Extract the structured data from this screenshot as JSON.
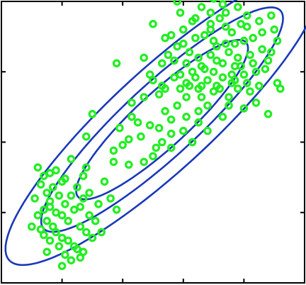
{
  "chart_data": {
    "type": "scatter",
    "title": "",
    "xlabel": "",
    "ylabel": "",
    "xlim": [
      0,
      10
    ],
    "ylim": [
      0,
      10
    ],
    "grid": false,
    "legend": "none",
    "xticks": [
      2,
      4,
      6,
      8
    ],
    "yticks": [
      2.5,
      5,
      7.5
    ],
    "series": [
      {
        "kind": "points",
        "marker": "circle-open",
        "color": "#22ee22",
        "points": [
          [
            1.2,
            4.1
          ],
          [
            1.4,
            3.8
          ],
          [
            1.6,
            3.9
          ],
          [
            1.8,
            4.0
          ],
          [
            2.1,
            3.7
          ],
          [
            1.5,
            3.2
          ],
          [
            1.3,
            3.5
          ],
          [
            2.0,
            3.6
          ],
          [
            1.6,
            2.9
          ],
          [
            1.4,
            2.6
          ],
          [
            1.8,
            2.5
          ],
          [
            2.1,
            2.8
          ],
          [
            1.9,
            3.1
          ],
          [
            1.2,
            2.4
          ],
          [
            1.5,
            2.2
          ],
          [
            1.7,
            2.0
          ],
          [
            1.8,
            1.8
          ],
          [
            2.0,
            1.6
          ],
          [
            1.6,
            1.5
          ],
          [
            1.4,
            1.7
          ],
          [
            1.9,
            1.3
          ],
          [
            2.2,
            1.5
          ],
          [
            2.4,
            1.3
          ],
          [
            2.5,
            1.2
          ],
          [
            2.0,
            0.6
          ],
          [
            2.3,
            0.8
          ],
          [
            2.6,
            0.9
          ],
          [
            1.5,
            1.1
          ],
          [
            1.3,
            1.9
          ],
          [
            1.1,
            3.0
          ],
          [
            2.2,
            2.2
          ],
          [
            2.4,
            2.6
          ],
          [
            2.6,
            2.0
          ],
          [
            2.8,
            1.8
          ],
          [
            3.0,
            1.6
          ],
          [
            2.9,
            2.4
          ],
          [
            2.7,
            3.0
          ],
          [
            2.5,
            3.4
          ],
          [
            2.9,
            3.2
          ],
          [
            3.2,
            2.8
          ],
          [
            2.8,
            4.1
          ],
          [
            2.3,
            4.4
          ],
          [
            2.7,
            3.8
          ],
          [
            3.1,
            2.2
          ],
          [
            3.4,
            3.6
          ],
          [
            3.6,
            3.0
          ],
          [
            3.8,
            2.6
          ],
          [
            3.3,
            1.8
          ],
          [
            2.7,
            1.1
          ],
          [
            2.1,
            1.0
          ],
          [
            1.0,
            2.0
          ],
          [
            1.7,
            3.4
          ],
          [
            2.3,
            3.1
          ],
          [
            2.6,
            2.7
          ],
          [
            2.0,
            2.4
          ],
          [
            1.6,
            2.7
          ],
          [
            2.8,
            5.2
          ],
          [
            3.7,
            4.3
          ],
          [
            3.7,
            4.7
          ],
          [
            4.2,
            4.2
          ],
          [
            4.3,
            5.9
          ],
          [
            4.6,
            5.2
          ],
          [
            4.9,
            5.6
          ],
          [
            5.0,
            4.5
          ],
          [
            5.1,
            4.8
          ],
          [
            4.7,
            4.3
          ],
          [
            5.2,
            5.5
          ],
          [
            5.3,
            5.0
          ],
          [
            5.6,
            5.8
          ],
          [
            5.8,
            6.3
          ],
          [
            5.6,
            4.8
          ],
          [
            5.4,
            6.1
          ],
          [
            6.1,
            5.9
          ],
          [
            6.5,
            6.1
          ],
          [
            6.0,
            5.4
          ],
          [
            6.3,
            5.0
          ],
          [
            6.8,
            6.3
          ],
          [
            7.0,
            6.8
          ],
          [
            5.2,
            6.7
          ],
          [
            4.9,
            7.4
          ],
          [
            5.0,
            7.2
          ],
          [
            5.4,
            6.9
          ],
          [
            5.9,
            7.4
          ],
          [
            5.7,
            7.9
          ],
          [
            6.1,
            7.1
          ],
          [
            5.5,
            8.1
          ],
          [
            5.8,
            8.4
          ],
          [
            6.4,
            8.7
          ],
          [
            6.2,
            8.2
          ],
          [
            6.6,
            7.7
          ],
          [
            6.8,
            7.2
          ],
          [
            7.0,
            7.5
          ],
          [
            7.1,
            7.9
          ],
          [
            6.9,
            8.1
          ],
          [
            6.7,
            8.8
          ],
          [
            6.3,
            9.3
          ],
          [
            6.0,
            9.0
          ],
          [
            6.9,
            9.6
          ],
          [
            7.2,
            9.4
          ],
          [
            7.4,
            9.1
          ],
          [
            7.7,
            8.5
          ],
          [
            7.5,
            8.2
          ],
          [
            7.8,
            8.0
          ],
          [
            7.9,
            7.7
          ],
          [
            7.6,
            7.4
          ],
          [
            7.3,
            7.3
          ],
          [
            8.0,
            8.6
          ],
          [
            8.2,
            8.1
          ],
          [
            8.4,
            7.5
          ],
          [
            8.1,
            7.1
          ],
          [
            7.8,
            6.9
          ],
          [
            8.4,
            6.4
          ],
          [
            8.0,
            6.2
          ],
          [
            7.5,
            6.6
          ],
          [
            7.2,
            6.9
          ],
          [
            6.6,
            7.0
          ],
          [
            6.4,
            7.3
          ],
          [
            7.3,
            7.8
          ],
          [
            8.1,
            9.1
          ],
          [
            8.3,
            8.7
          ],
          [
            8.6,
            8.3
          ],
          [
            8.7,
            7.6
          ],
          [
            8.5,
            7.0
          ],
          [
            8.2,
            6.8
          ],
          [
            7.6,
            7.1
          ],
          [
            7.1,
            7.0
          ],
          [
            6.1,
            7.8
          ],
          [
            6.3,
            7.5
          ],
          [
            5.7,
            7.3
          ],
          [
            5.3,
            7.0
          ],
          [
            7.4,
            9.6
          ],
          [
            7.0,
            10.1
          ],
          [
            7.2,
            10.3
          ],
          [
            7.8,
            9.8
          ],
          [
            8.5,
            9.3
          ],
          [
            8.1,
            9.5
          ],
          [
            8.9,
            8.2
          ],
          [
            9.1,
            8.6
          ],
          [
            8.8,
            7.9
          ],
          [
            9.1,
            7.1
          ],
          [
            9.2,
            6.9
          ],
          [
            8.8,
            6.0
          ],
          [
            7.5,
            6.3
          ],
          [
            7.3,
            5.9
          ],
          [
            6.8,
            5.4
          ],
          [
            6.5,
            5.7
          ],
          [
            6.1,
            6.6
          ],
          [
            5.9,
            6.9
          ],
          [
            4.7,
            6.6
          ],
          [
            4.3,
            6.4
          ],
          [
            3.8,
            7.8
          ],
          [
            3.0,
            6.0
          ],
          [
            4.2,
            5.1
          ],
          [
            4.0,
            4.9
          ],
          [
            3.9,
            5.5
          ],
          [
            4.5,
            5.7
          ],
          [
            5.6,
            5.3
          ],
          [
            6.6,
            6.6
          ],
          [
            7.7,
            7.7
          ],
          [
            8.3,
            7.8
          ],
          [
            8.6,
            8.9
          ],
          [
            7.9,
            9.2
          ],
          [
            6.9,
            9.0
          ],
          [
            5.6,
            8.8
          ],
          [
            5.9,
            9.6
          ],
          [
            6.6,
            9.8
          ],
          [
            6.8,
            10.4
          ],
          [
            7.5,
            10.6
          ],
          [
            8.2,
            10.4
          ],
          [
            8.9,
            10.8
          ],
          [
            8.0,
            10.2
          ],
          [
            5.8,
            10.0
          ],
          [
            5.0,
            9.2
          ],
          [
            4.7,
            8.0
          ],
          [
            5.3,
            7.8
          ],
          [
            6.0,
            8.5
          ],
          [
            7.4,
            8.5
          ],
          [
            6.5,
            8.0
          ],
          [
            7.0,
            8.6
          ],
          [
            7.6,
            8.9
          ],
          [
            8.0,
            7.4
          ],
          [
            7.7,
            7.2
          ],
          [
            6.7,
            7.6
          ],
          [
            6.2,
            7.0
          ],
          [
            5.4,
            8.7
          ],
          [
            8.9,
            9.5
          ],
          [
            9.0,
            9.0
          ],
          [
            6.9,
            9.2
          ],
          [
            7.3,
            9.9
          ],
          [
            6.4,
            9.4
          ],
          [
            7.1,
            8.4
          ],
          [
            6.5,
            6.9
          ]
        ]
      },
      {
        "kind": "contours",
        "name": "",
        "color": "#1a39b8",
        "ellipses": [
          {
            "cx": 5.3,
            "cy": 5.8,
            "rx": 3.9,
            "ry": 0.92,
            "angle": 45
          },
          {
            "cx": 5.3,
            "cy": 5.8,
            "rx": 5.5,
            "ry": 1.25,
            "angle": 45
          },
          {
            "cx": 5.3,
            "cy": 5.8,
            "rx": 7.1,
            "ry": 1.72,
            "angle": 45
          }
        ]
      }
    ]
  }
}
